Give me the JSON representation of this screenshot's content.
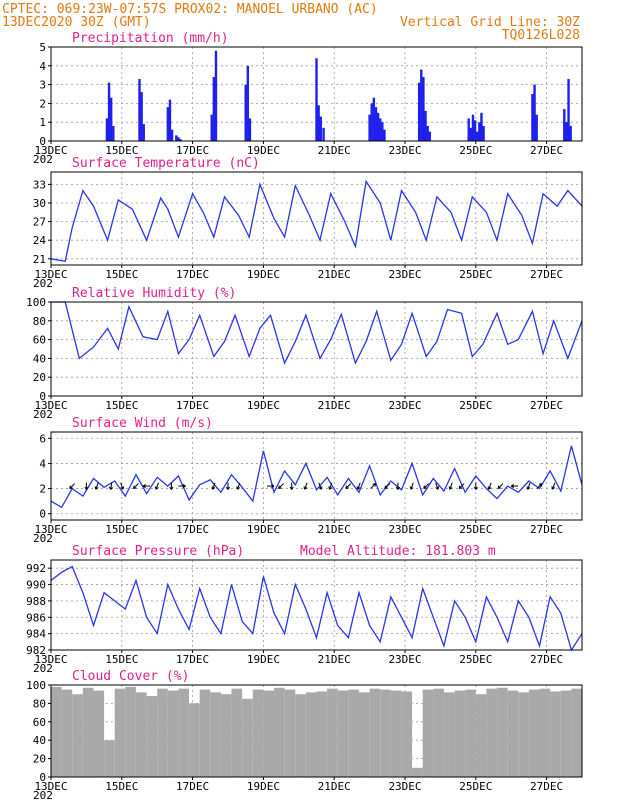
{
  "header": {
    "line1_left": "CPTEC:   069:23W-07:57S   PROX02: MANOEL URBANO (AC)",
    "line2_left": "13DEC2020 30Z (GMT)",
    "line2_right": "Vertical Grid Line: 30Z",
    "line3_right": "TQ0126L028"
  },
  "x_axis": {
    "tick_labels": [
      "13DEC",
      "15DEC",
      "17DEC",
      "19DEC",
      "21DEC",
      "23DEC",
      "25DEC",
      "27DEC"
    ],
    "tick_days": [
      0,
      2,
      4,
      6,
      8,
      10,
      12,
      14
    ],
    "sub_label": "202",
    "range_days": [
      0,
      15
    ]
  },
  "colors": {
    "header": "#e07a10",
    "title": "#e0208c",
    "line": "#2a35e8",
    "bar": "#2020ee",
    "cloud": "#a9a9a9"
  },
  "chart_data": [
    {
      "type": "bar",
      "title": "Precipitation (mm/h)",
      "ylim": [
        0,
        5
      ],
      "yticks": [
        0,
        1,
        2,
        3,
        4,
        5
      ],
      "grid": true,
      "x": [
        1.58,
        1.64,
        1.7,
        1.76,
        2.5,
        2.56,
        2.62,
        3.3,
        3.36,
        3.42,
        3.54,
        3.6,
        3.66,
        4.54,
        4.6,
        4.66,
        5.5,
        5.56,
        5.62,
        7.5,
        7.56,
        7.62,
        7.7,
        9.0,
        9.06,
        9.12,
        9.18,
        9.24,
        9.3,
        9.36,
        9.42,
        10.4,
        10.46,
        10.52,
        10.58,
        10.64,
        10.7,
        11.8,
        11.86,
        11.92,
        11.98,
        12.04,
        12.1,
        12.16,
        12.22,
        13.6,
        13.66,
        13.72,
        14.5,
        14.56,
        14.62,
        14.68
      ],
      "values": [
        1.2,
        3.1,
        2.3,
        0.8,
        3.3,
        2.6,
        0.9,
        1.8,
        2.2,
        0.6,
        0.3,
        0.2,
        0.1,
        1.4,
        3.4,
        4.8,
        3.0,
        4.0,
        1.2,
        4.4,
        1.9,
        1.3,
        0.7,
        1.4,
        2.0,
        2.3,
        1.8,
        1.5,
        1.2,
        1.0,
        0.6,
        3.1,
        3.8,
        3.4,
        1.6,
        0.8,
        0.5,
        1.2,
        0.7,
        1.4,
        1.1,
        0.5,
        1.0,
        1.5,
        0.8,
        2.5,
        3.0,
        1.4,
        1.7,
        1.0,
        3.3,
        0.8
      ]
    },
    {
      "type": "line",
      "title": "Surface Temperature (nC)",
      "ylim": [
        20,
        35
      ],
      "yticks": [
        21,
        24,
        27,
        30,
        33
      ],
      "grid": true,
      "x": [
        0.0,
        0.4,
        0.6,
        0.9,
        1.2,
        1.6,
        1.9,
        2.3,
        2.7,
        3.1,
        3.3,
        3.6,
        4.0,
        4.3,
        4.6,
        4.9,
        5.3,
        5.6,
        5.9,
        6.3,
        6.6,
        6.9,
        7.3,
        7.6,
        7.9,
        8.3,
        8.6,
        8.9,
        9.3,
        9.6,
        9.9,
        10.3,
        10.6,
        10.9,
        11.3,
        11.6,
        11.9,
        12.3,
        12.6,
        12.9,
        13.3,
        13.6,
        13.9,
        14.3,
        14.6,
        15.0
      ],
      "values": [
        21.0,
        20.6,
        26.0,
        32.0,
        29.5,
        24.0,
        30.5,
        29.0,
        24.0,
        30.8,
        29.0,
        24.5,
        31.5,
        28.5,
        24.5,
        31.0,
        28.0,
        24.5,
        33.0,
        27.5,
        24.5,
        32.8,
        28.0,
        24.0,
        31.5,
        27.0,
        23.0,
        33.5,
        30.0,
        24.0,
        32.0,
        28.5,
        24.0,
        31.0,
        28.5,
        24.0,
        31.0,
        28.5,
        24.0,
        31.5,
        28.0,
        23.5,
        31.5,
        29.5,
        32.0,
        29.5
      ]
    },
    {
      "type": "line",
      "title": "Relative Humidity (%)",
      "ylim": [
        0,
        100
      ],
      "yticks": [
        0,
        20,
        40,
        60,
        80,
        100
      ],
      "grid": true,
      "x": [
        0.0,
        0.4,
        0.8,
        1.2,
        1.6,
        1.9,
        2.2,
        2.6,
        3.0,
        3.3,
        3.6,
        3.9,
        4.2,
        4.6,
        4.9,
        5.2,
        5.6,
        5.9,
        6.2,
        6.6,
        6.9,
        7.2,
        7.6,
        7.9,
        8.2,
        8.6,
        8.9,
        9.2,
        9.6,
        9.9,
        10.2,
        10.6,
        10.9,
        11.2,
        11.6,
        11.9,
        12.2,
        12.6,
        12.9,
        13.2,
        13.6,
        13.9,
        14.2,
        14.6,
        15.0
      ],
      "values": [
        100.0,
        100.0,
        40.0,
        52.0,
        72.0,
        50.0,
        95.0,
        63.0,
        60.0,
        90.0,
        45.0,
        60.0,
        86.0,
        42.0,
        58.0,
        86.0,
        42.0,
        72.0,
        86.0,
        35.0,
        58.0,
        86.0,
        40.0,
        60.0,
        87.0,
        35.0,
        58.0,
        90.0,
        38.0,
        55.0,
        88.0,
        42.0,
        58.0,
        92.0,
        88.0,
        42.0,
        55.0,
        88.0,
        55.0,
        60.0,
        90.0,
        45.0,
        80.0,
        40.0,
        80.0
      ]
    },
    {
      "type": "line",
      "title": "Surface Wind (m/s)",
      "ylim": [
        -0.5,
        6.5
      ],
      "yticks": [
        0,
        2,
        4,
        6
      ],
      "grid": true,
      "x": [
        0.0,
        0.3,
        0.6,
        0.9,
        1.2,
        1.5,
        1.8,
        2.1,
        2.4,
        2.7,
        3.0,
        3.3,
        3.6,
        3.9,
        4.2,
        4.5,
        4.8,
        5.1,
        5.4,
        5.7,
        6.0,
        6.3,
        6.6,
        6.9,
        7.2,
        7.5,
        7.8,
        8.1,
        8.4,
        8.7,
        9.0,
        9.3,
        9.6,
        9.9,
        10.2,
        10.5,
        10.8,
        11.1,
        11.4,
        11.7,
        12.0,
        12.3,
        12.6,
        12.9,
        13.2,
        13.5,
        13.8,
        14.1,
        14.4,
        14.7,
        15.0
      ],
      "values": [
        1.0,
        0.5,
        2.0,
        1.4,
        2.8,
        2.1,
        2.6,
        1.4,
        3.1,
        1.6,
        2.9,
        2.2,
        3.0,
        1.1,
        2.3,
        2.7,
        1.7,
        3.1,
        2.1,
        1.0,
        5.0,
        1.7,
        3.4,
        2.3,
        4.0,
        1.9,
        2.9,
        1.5,
        2.8,
        1.7,
        3.8,
        1.5,
        2.6,
        1.9,
        4.0,
        1.5,
        2.8,
        1.8,
        3.6,
        1.7,
        3.0,
        2.0,
        1.2,
        2.2,
        1.7,
        2.6,
        2.0,
        3.4,
        1.8,
        5.4,
        2.3
      ],
      "arrows_x": [
        0.6,
        1.0,
        1.3,
        1.7,
        2.0,
        2.4,
        2.7,
        3.0,
        3.4,
        3.7,
        4.6,
        5.0,
        5.3,
        6.2,
        6.5,
        6.8,
        7.2,
        7.6,
        7.9,
        8.4,
        8.7,
        9.1,
        9.5,
        9.8,
        10.2,
        10.6,
        10.9,
        11.3,
        11.6,
        12.0,
        12.4,
        12.7,
        13.1,
        13.5,
        13.8,
        14.2
      ],
      "arrows_dir_deg": [
        225,
        180,
        200,
        190,
        160,
        225,
        270,
        200,
        180,
        90,
        200,
        180,
        200,
        90,
        225,
        180,
        200,
        160,
        200,
        225,
        200,
        45,
        225,
        180,
        200,
        225,
        160,
        200,
        225,
        180,
        200,
        225,
        270,
        200,
        45,
        200
      ]
    },
    {
      "type": "line",
      "title": "Surface Pressure (hPa)",
      "annotation": "Model Altitude: 181.803 m",
      "ylim": [
        982,
        993
      ],
      "yticks": [
        982,
        984,
        986,
        988,
        990,
        992
      ],
      "grid": true,
      "x": [
        0.0,
        0.3,
        0.6,
        0.9,
        1.2,
        1.5,
        1.8,
        2.1,
        2.4,
        2.7,
        3.0,
        3.3,
        3.6,
        3.9,
        4.2,
        4.5,
        4.8,
        5.1,
        5.4,
        5.7,
        6.0,
        6.3,
        6.6,
        6.9,
        7.2,
        7.5,
        7.8,
        8.1,
        8.4,
        8.7,
        9.0,
        9.3,
        9.6,
        9.9,
        10.2,
        10.5,
        10.8,
        11.1,
        11.4,
        11.7,
        12.0,
        12.3,
        12.6,
        12.9,
        13.2,
        13.5,
        13.8,
        14.1,
        14.4,
        14.7,
        15.0
      ],
      "values": [
        990.5,
        991.5,
        992.2,
        989.0,
        985.0,
        989.0,
        988.0,
        987.0,
        990.5,
        986.0,
        984.0,
        990.0,
        987.0,
        984.5,
        989.5,
        986.0,
        984.0,
        990.0,
        985.5,
        984.0,
        991.0,
        986.5,
        984.0,
        990.0,
        987.0,
        983.5,
        989.0,
        985.0,
        983.5,
        989.0,
        985.0,
        983.0,
        988.5,
        986.0,
        983.5,
        989.5,
        986.0,
        982.5,
        988.0,
        986.0,
        983.0,
        988.5,
        986.0,
        983.0,
        988.0,
        986.0,
        982.5,
        988.5,
        986.5,
        982.0,
        984.0
      ]
    },
    {
      "type": "bar",
      "title": "Cloud Cover (%)",
      "ylim": [
        0,
        100
      ],
      "yticks": [
        0,
        20,
        40,
        60,
        80,
        100
      ],
      "grid": true,
      "x": [
        0.0,
        0.3,
        0.6,
        0.9,
        1.2,
        1.5,
        1.8,
        2.1,
        2.4,
        2.7,
        3.0,
        3.3,
        3.6,
        3.9,
        4.2,
        4.5,
        4.8,
        5.1,
        5.4,
        5.7,
        6.0,
        6.3,
        6.6,
        6.9,
        7.2,
        7.5,
        7.8,
        8.1,
        8.4,
        8.7,
        9.0,
        9.3,
        9.6,
        9.9,
        10.2,
        10.5,
        10.8,
        11.1,
        11.4,
        11.7,
        12.0,
        12.3,
        12.6,
        12.9,
        13.2,
        13.5,
        13.8,
        14.1,
        14.4,
        14.7
      ],
      "values": [
        98,
        95,
        90,
        97,
        94,
        40,
        96,
        98,
        92,
        88,
        96,
        94,
        96,
        80,
        95,
        92,
        90,
        96,
        85,
        95,
        94,
        97,
        95,
        90,
        92,
        93,
        96,
        94,
        95,
        92,
        96,
        95,
        94,
        93,
        10,
        95,
        96,
        92,
        94,
        95,
        90,
        96,
        97,
        94,
        92,
        95,
        96,
        93,
        94,
        96
      ]
    }
  ]
}
